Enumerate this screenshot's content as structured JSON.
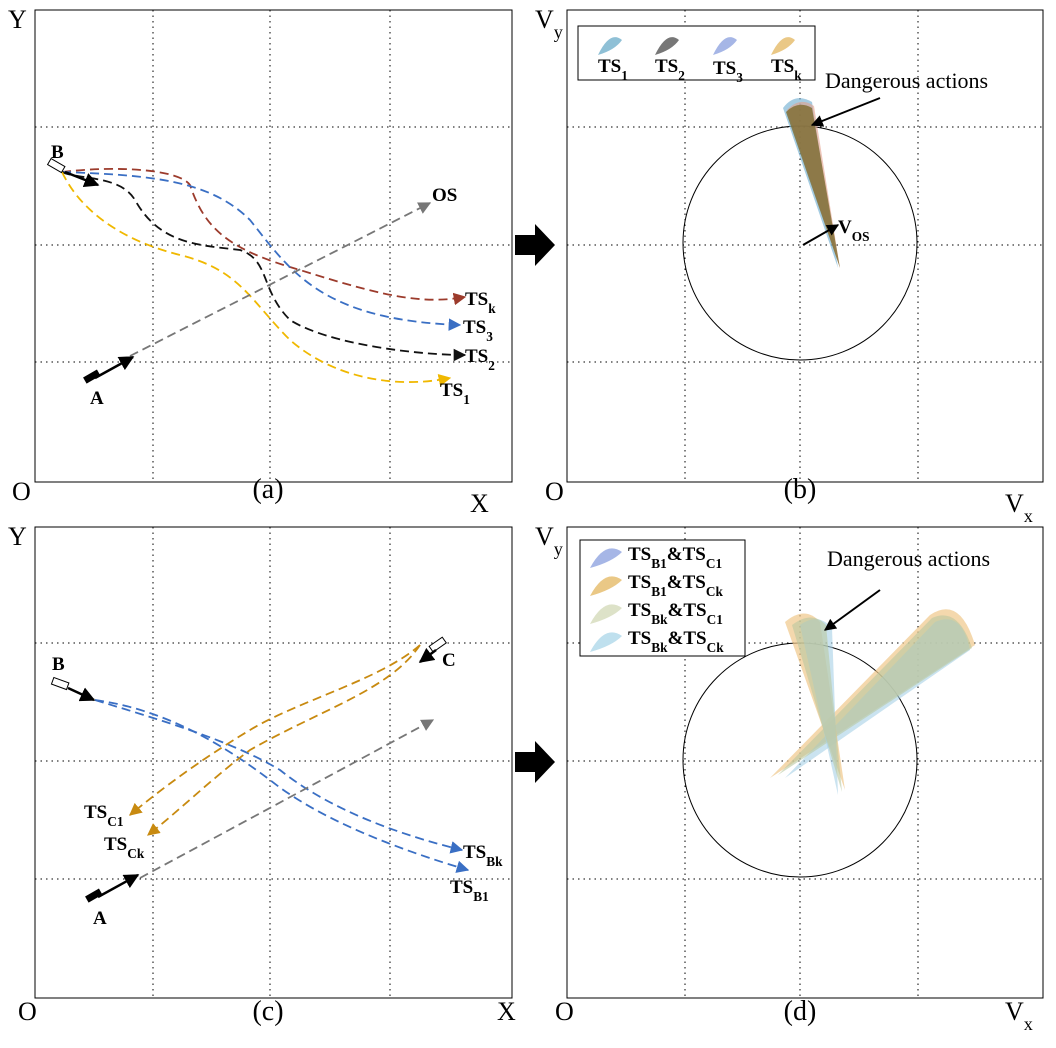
{
  "panels": [
    {
      "texts": [
        "Y",
        "O",
        "X",
        "(a)",
        "B",
        "A",
        "OS",
        [
          "TS",
          "k"
        ],
        [
          "TS",
          "3"
        ],
        [
          "TS",
          "2"
        ],
        [
          "TS",
          "1"
        ]
      ]
    },
    {
      "texts": [
        [
          "V",
          "y"
        ],
        "O",
        [
          "V",
          "x"
        ],
        "(b)",
        "Dangerous actions",
        [
          "V",
          "OS"
        ]
      ],
      "legend": [
        [
          "TS",
          "1"
        ],
        [
          "TS",
          "2"
        ],
        [
          "TS",
          "3"
        ],
        [
          "TS",
          "k"
        ]
      ]
    },
    {
      "texts": [
        "Y",
        "O",
        "X",
        "(c)",
        "B",
        "C",
        "A",
        [
          "TS",
          "C1"
        ],
        [
          "TS",
          "Ck"
        ],
        [
          "TS",
          "Bk"
        ],
        [
          "TS",
          "B1"
        ]
      ]
    },
    {
      "texts": [
        [
          "V",
          "y"
        ],
        "O",
        [
          "V",
          "x"
        ],
        "(d)",
        "Dangerous actions"
      ],
      "legend": [
        [
          "TS",
          "B1",
          "&TS",
          "C1"
        ],
        [
          "TS",
          "B1",
          "&TS",
          "Ck"
        ],
        [
          "TS",
          "Bk",
          "&TS",
          "C1"
        ],
        [
          "TS",
          "Bk",
          "&TS",
          "Ck"
        ]
      ]
    }
  ]
}
